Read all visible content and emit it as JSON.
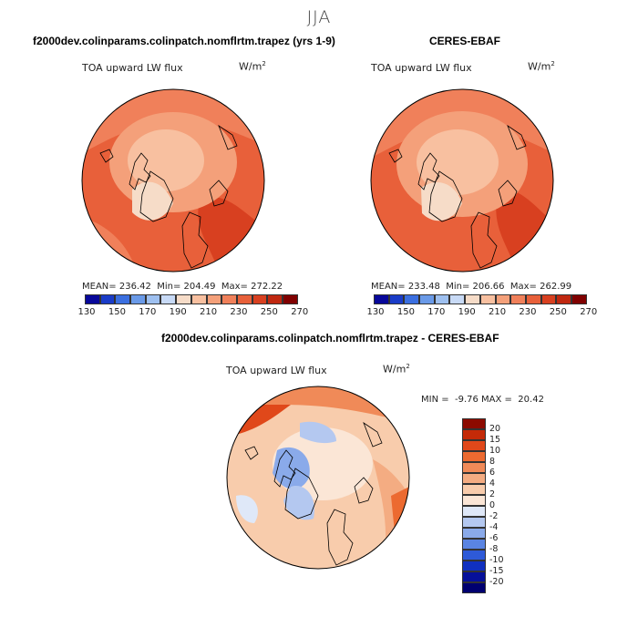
{
  "title": "JJA",
  "panels": [
    {
      "title": "f2000dev.colinparams.colinpatch.nomflrtm.trapez (yrs 1-9)",
      "variable": "TOA upward LW flux",
      "units": "W/m",
      "units_exp": "2",
      "stats": {
        "mean_label": "MEAN=",
        "mean": "236.42",
        "min_label": "Min=",
        "min": "204.49",
        "max_label": "Max=",
        "max": "272.22"
      }
    },
    {
      "title": "CERES-EBAF",
      "variable": "TOA upward LW flux",
      "units": "W/m",
      "units_exp": "2",
      "stats": {
        "mean_label": "MEAN=",
        "mean": "233.48",
        "min_label": "Min=",
        "min": "206.66",
        "max_label": "Max=",
        "max": "262.99"
      }
    },
    {
      "title": "f2000dev.colinparams.colinpatch.nomflrtm.trapez - CERES-EBAF",
      "variable": "TOA upward LW flux",
      "units": "W/m",
      "units_exp": "2",
      "stats": {
        "min_label": "MIN =",
        "min": "-9.76",
        "max_label": "MAX =",
        "max": "20.42"
      }
    }
  ],
  "chart_data": [
    {
      "type": "heatmap",
      "projection": "polar-stereographic-north",
      "title": "f2000dev.colinparams.colinpatch.nomflrtm.trapez (yrs 1-9)",
      "variable": "TOA upward LW flux",
      "units": "W/m2",
      "mean": 236.42,
      "min": 204.49,
      "max": 272.22,
      "colorbar": {
        "orientation": "horizontal",
        "ticks": [
          "130",
          "150",
          "170",
          "190",
          "210",
          "230",
          "250",
          "270"
        ],
        "colors": [
          "#08089a",
          "#1a3cc8",
          "#3b6fe0",
          "#6a9ae8",
          "#9ec0f0",
          "#c8daf6",
          "#f6dcc8",
          "#f8c0a0",
          "#f4a07a",
          "#f0805a",
          "#e8603a",
          "#d84020",
          "#c02810",
          "#800000"
        ]
      }
    },
    {
      "type": "heatmap",
      "projection": "polar-stereographic-north",
      "title": "CERES-EBAF",
      "variable": "TOA upward LW flux",
      "units": "W/m2",
      "mean": 233.48,
      "min": 206.66,
      "max": 262.99,
      "colorbar": {
        "orientation": "horizontal",
        "ticks": [
          "130",
          "150",
          "170",
          "190",
          "210",
          "230",
          "250",
          "270"
        ],
        "colors": [
          "#08089a",
          "#1a3cc8",
          "#3b6fe0",
          "#6a9ae8",
          "#9ec0f0",
          "#c8daf6",
          "#f6dcc8",
          "#f8c0a0",
          "#f4a07a",
          "#f0805a",
          "#e8603a",
          "#d84020",
          "#c02810",
          "#800000"
        ]
      }
    },
    {
      "type": "heatmap",
      "projection": "polar-stereographic-north",
      "title": "f2000dev.colinparams.colinpatch.nomflrtm.trapez - CERES-EBAF",
      "variable": "TOA upward LW flux",
      "units": "W/m2",
      "min": -9.76,
      "max": 20.42,
      "colorbar": {
        "orientation": "vertical",
        "ticks": [
          "20",
          "15",
          "10",
          "8",
          "6",
          "4",
          "2",
          "0",
          "-2",
          "-4",
          "-6",
          "-8",
          "-10",
          "-15",
          "-20"
        ],
        "colors": [
          "#8c0a00",
          "#c42a08",
          "#e0481a",
          "#ec6a30",
          "#f08a58",
          "#f4ac82",
          "#f8ccac",
          "#fbe6d6",
          "#dfe8f8",
          "#b4c8f0",
          "#8aaaea",
          "#5a84e2",
          "#2e5ad8",
          "#1030c0",
          "#06109a",
          "#000070"
        ]
      }
    }
  ]
}
